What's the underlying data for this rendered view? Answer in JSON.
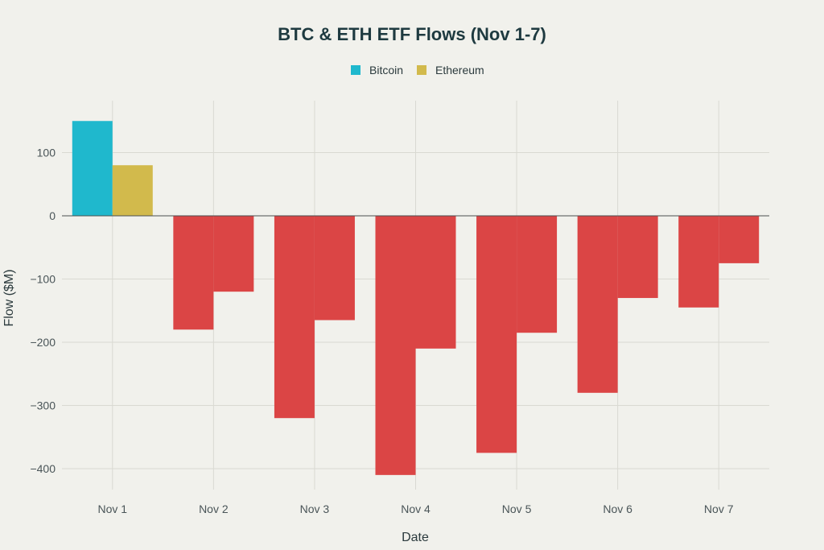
{
  "chart_data": {
    "type": "bar",
    "title": "BTC & ETH ETF Flows (Nov 1-7)",
    "xlabel": "Date",
    "ylabel": "Flow ($M)",
    "categories": [
      "Nov 1",
      "Nov 2",
      "Nov 3",
      "Nov 4",
      "Nov 5",
      "Nov 6",
      "Nov 7"
    ],
    "series": [
      {
        "name": "Bitcoin",
        "values": [
          150,
          -180,
          -320,
          -410,
          -375,
          -280,
          -145
        ]
      },
      {
        "name": "Ethereum",
        "values": [
          80,
          -120,
          -165,
          -210,
          -185,
          -130,
          -75
        ]
      }
    ],
    "ylim": [
      -430,
      180
    ],
    "yticks": [
      100,
      0,
      -100,
      -200,
      -300,
      -400
    ],
    "ytick_labels": [
      "100",
      "0",
      "−100",
      "−200",
      "−300",
      "−400"
    ],
    "legend_position": "top-center",
    "grid": true,
    "colors": {
      "Bitcoin": "#1fb8cd",
      "Ethereum": "#d2ba4c",
      "negative": "#db4545",
      "background": "#f1f1ec"
    }
  }
}
